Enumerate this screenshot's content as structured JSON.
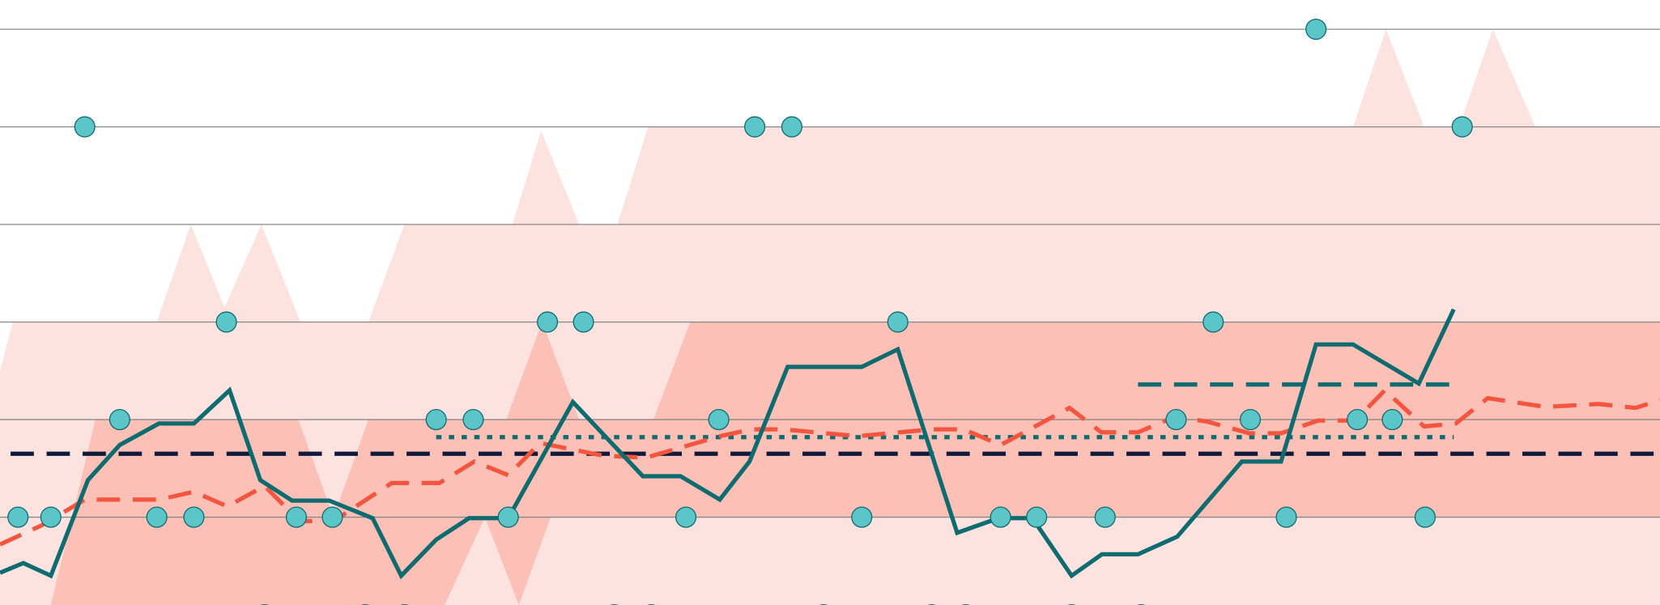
{
  "chart_data": {
    "type": "combo",
    "xlim": [
      0,
      47
    ],
    "ylim": [
      0.1,
      6.3
    ],
    "yticks": [
      1,
      2,
      3,
      4,
      5,
      6
    ],
    "grid": true,
    "series": [
      {
        "type": "area",
        "color": "#fde3df",
        "x": [
          0,
          0.36,
          4.44,
          5.4,
          6.36,
          7.4,
          8.51,
          10.43,
          11.45,
          14.51,
          15.32,
          16.4,
          17.48,
          18.35,
          38.31,
          39.24,
          40.32,
          41.31,
          42.27,
          43.47,
          47
        ],
        "values": [
          2.5,
          3,
          3,
          4,
          3.15,
          4,
          3,
          3,
          4,
          4,
          4.96,
          4,
          4,
          5,
          5,
          6,
          5,
          5,
          6,
          5,
          5
        ]
      },
      {
        "type": "area",
        "color": "#fcc0b6",
        "x": [
          0,
          1.44,
          2.7,
          8.45,
          9.44,
          10.43,
          14.33,
          15.35,
          16.4,
          18.5,
          19.54,
          47
        ],
        "values": [
          0.1,
          0.1,
          2,
          2,
          1,
          2,
          2,
          3,
          2,
          2,
          3,
          3
        ]
      },
      {
        "type": "area",
        "color": "#fde3df",
        "x": [
          0,
          12.59,
          13.73,
          14.69,
          15.59,
          47
        ],
        "values": [
          0.1,
          0.1,
          1,
          0.1,
          1,
          1
        ]
      },
      {
        "type": "line",
        "color": "#0f1a3c",
        "linestyle": "dashed",
        "width": 4,
        "x": [
          0.3,
          47
        ],
        "values": [
          1.65,
          1.65
        ]
      },
      {
        "type": "line",
        "color": "#0e6b70",
        "linestyle": "dotted",
        "width": 4,
        "x": [
          12.35,
          41.16
        ],
        "values": [
          1.82,
          1.82
        ]
      },
      {
        "type": "line",
        "color": "#0e6b70",
        "linestyle": "dashed",
        "width": 4,
        "x": [
          32.22,
          41.16
        ],
        "values": [
          2.36,
          2.36
        ]
      },
      {
        "type": "line",
        "color": "#f4553f",
        "linestyle": "dashed",
        "width": 4,
        "x": [
          0,
          1.2,
          2.4,
          4.5,
          5.49,
          6.44,
          7.49,
          8.48,
          9.44,
          11.09,
          12.44,
          13.43,
          14.39,
          15.29,
          17.09,
          18.29,
          20.38,
          21.28,
          22.18,
          24.28,
          26.38,
          27.28,
          28.33,
          30.28,
          31.18,
          32.22,
          33.27,
          34.17,
          35.37,
          36.27,
          37.32,
          38.37,
          39.21,
          40.32,
          41.22,
          42.12,
          43.76,
          45.26,
          46.31,
          47
        ],
        "values": [
          0.72,
          0.92,
          1.18,
          1.18,
          1.26,
          1.11,
          1.32,
          0.96,
          0.96,
          1.35,
          1.35,
          1.57,
          1.43,
          1.76,
          1.63,
          1.61,
          1.83,
          1.9,
          1.9,
          1.83,
          1.9,
          1.9,
          1.74,
          2.12,
          1.87,
          1.87,
          2.03,
          1.98,
          1.86,
          1.86,
          1.99,
          1.99,
          2.3,
          1.93,
          1.96,
          2.22,
          2.13,
          2.16,
          2.12,
          2.2
        ]
      },
      {
        "type": "line",
        "color": "#0e6b70",
        "linestyle": "solid",
        "width": 4,
        "x": [
          0,
          0.66,
          1.44,
          2.49,
          3.39,
          4.5,
          5.49,
          6.5,
          7.37,
          8.27,
          9.32,
          10.55,
          11.36,
          12.35,
          13.28,
          14.39,
          16.22,
          18.2,
          19.27,
          20.38,
          21.22,
          22.3,
          24.4,
          25.42,
          27.1,
          28.27,
          29.23,
          30.34,
          31.2,
          32.22,
          33.33,
          35.16,
          36.27,
          37.26,
          38.31,
          40.17,
          41.16
        ],
        "values": [
          0.43,
          0.53,
          0.4,
          1.38,
          1.74,
          1.96,
          1.96,
          2.3,
          1.38,
          1.17,
          1.17,
          0.99,
          0.4,
          0.77,
          0.99,
          0.99,
          2.18,
          1.42,
          1.42,
          1.18,
          1.57,
          2.54,
          2.54,
          2.72,
          0.84,
          0.99,
          0.99,
          0.4,
          0.62,
          0.62,
          0.8,
          1.57,
          1.57,
          2.77,
          2.77,
          2.37,
          3.13
        ]
      },
      {
        "type": "scatter",
        "color": "#5bc5c8",
        "edgecolor": "#0e6b70",
        "x": [
          2.4,
          21.37,
          22.42,
          37.26,
          41.4,
          6.41,
          15.5,
          16.52,
          25.42,
          34.35,
          3.39,
          12.35,
          13.4,
          20.35,
          33.3,
          35.4,
          38.43,
          39.42,
          0.51,
          1.44,
          4.44,
          5.49,
          8.39,
          9.41,
          14.39,
          19.42,
          24.4,
          28.33,
          29.35,
          31.29,
          36.42,
          40.35,
          7.49,
          10.34,
          11.45,
          17.39,
          18.44,
          23.32,
          26.38,
          27.34,
          30.34,
          32.31
        ],
        "values": [
          5,
          5,
          5,
          6,
          5,
          3,
          3,
          3,
          3,
          3,
          2,
          2,
          2,
          2,
          2,
          2,
          2,
          2,
          1,
          1,
          1,
          1,
          1,
          1,
          1,
          1,
          1,
          1,
          1,
          1,
          1,
          1,
          0,
          0,
          0,
          0,
          0,
          0,
          0,
          0,
          0,
          0
        ]
      }
    ]
  }
}
